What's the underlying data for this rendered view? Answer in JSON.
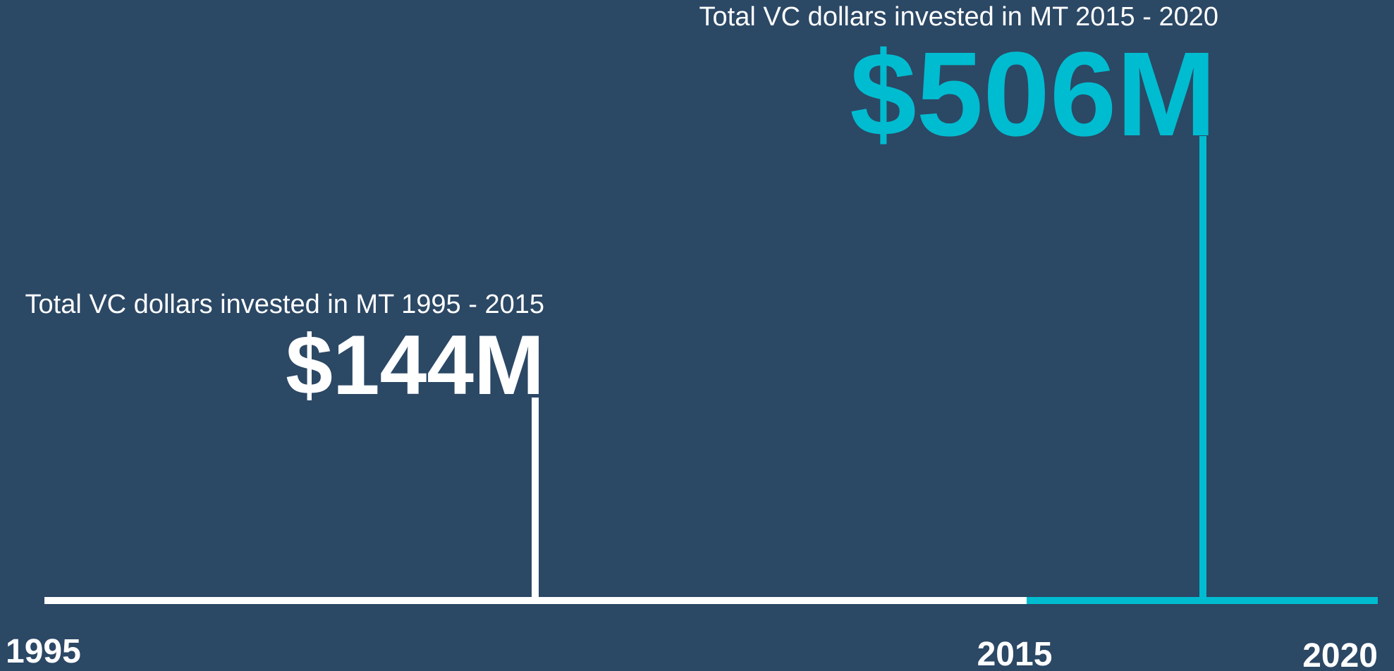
{
  "periods": [
    {
      "caption": "Total VC dollars invested in MT 1995 - 2015",
      "amount": "$144M"
    },
    {
      "caption": "Total VC dollars invested in MT 2015 - 2020",
      "amount": "$506M"
    }
  ],
  "years": [
    "1995",
    "2015",
    "2020"
  ]
}
